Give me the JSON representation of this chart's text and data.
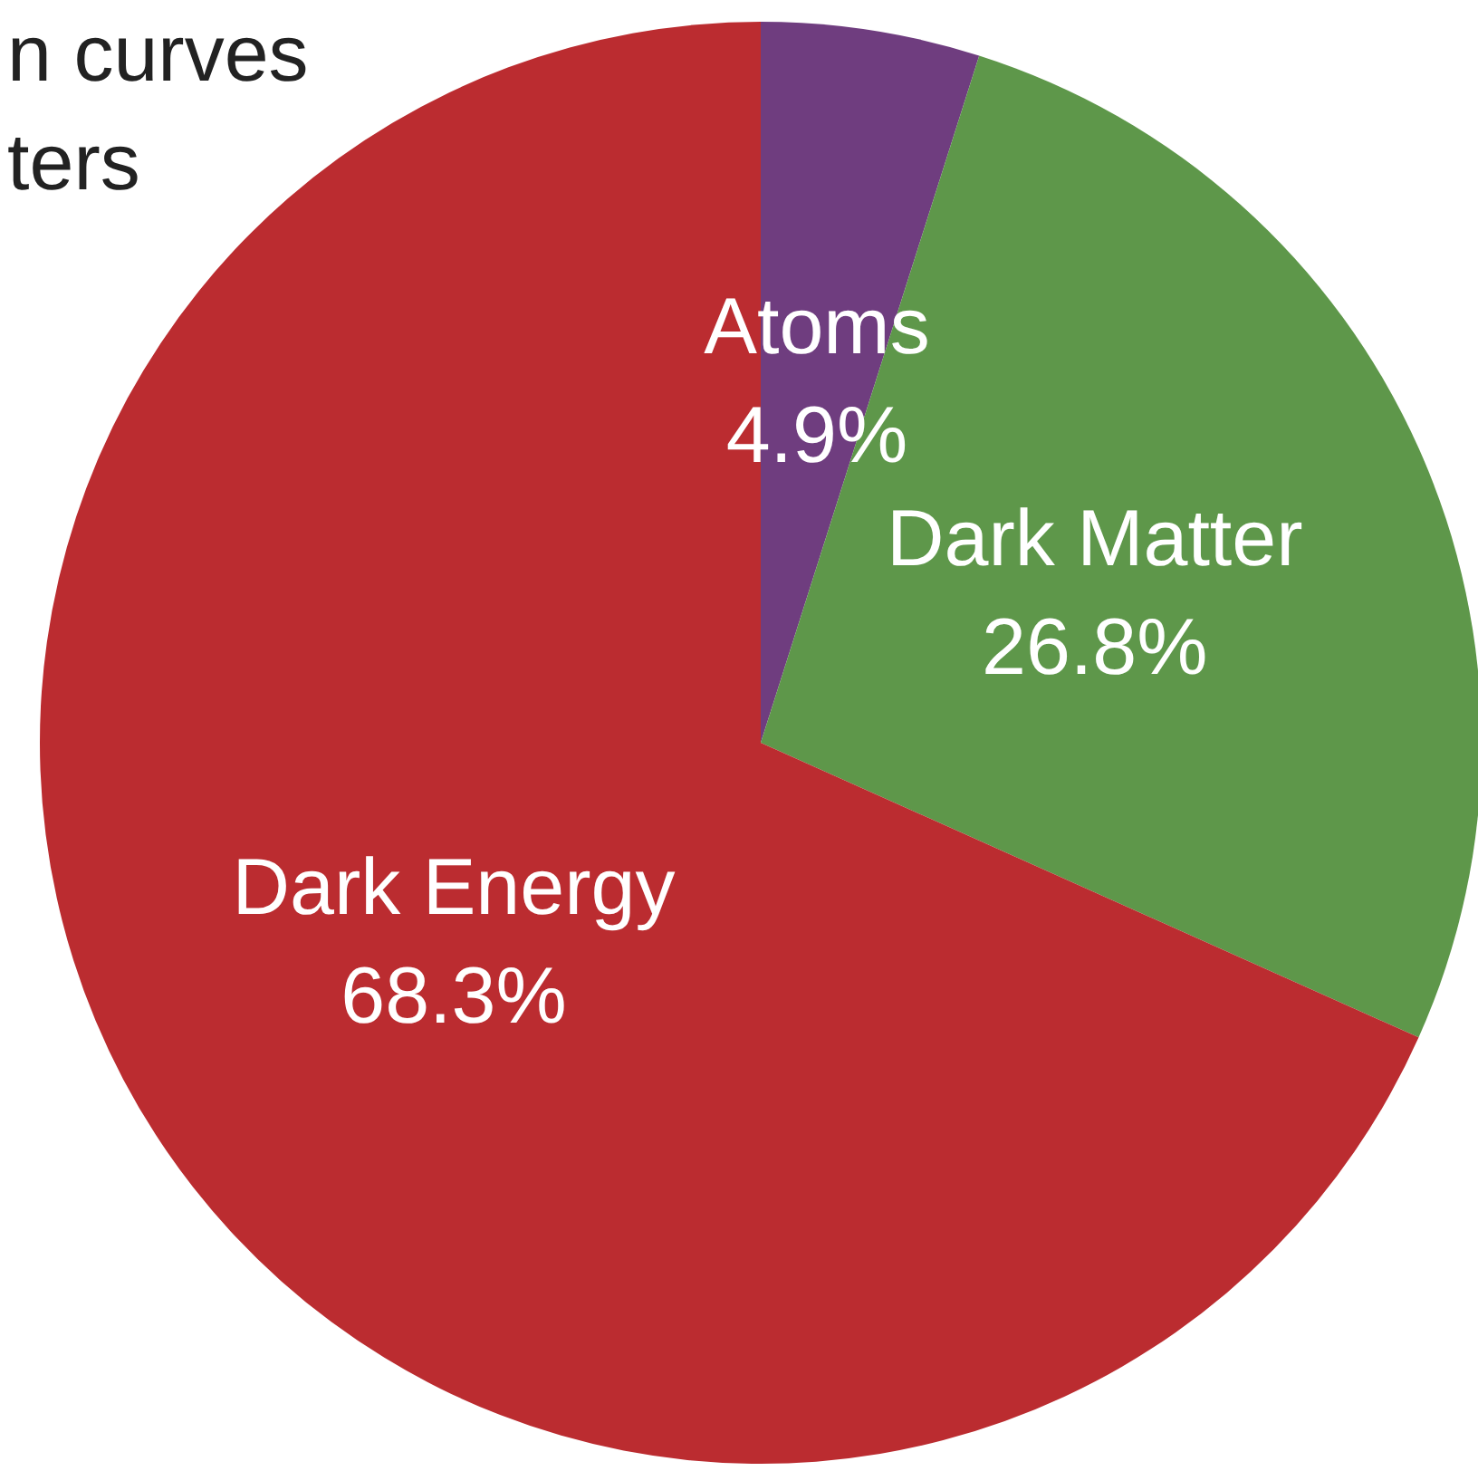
{
  "chart_data": {
    "type": "pie",
    "categories": [
      "Atoms",
      "Dark Matter",
      "Dark Energy"
    ],
    "values": [
      4.9,
      26.8,
      68.3
    ],
    "value_labels": [
      "4.9%",
      "26.8%",
      "68.3%"
    ],
    "colors": [
      "#6f3d7f",
      "#5e974a",
      "#bb2c30"
    ],
    "annotations": [
      "n curves",
      "ters"
    ],
    "legend": false
  }
}
